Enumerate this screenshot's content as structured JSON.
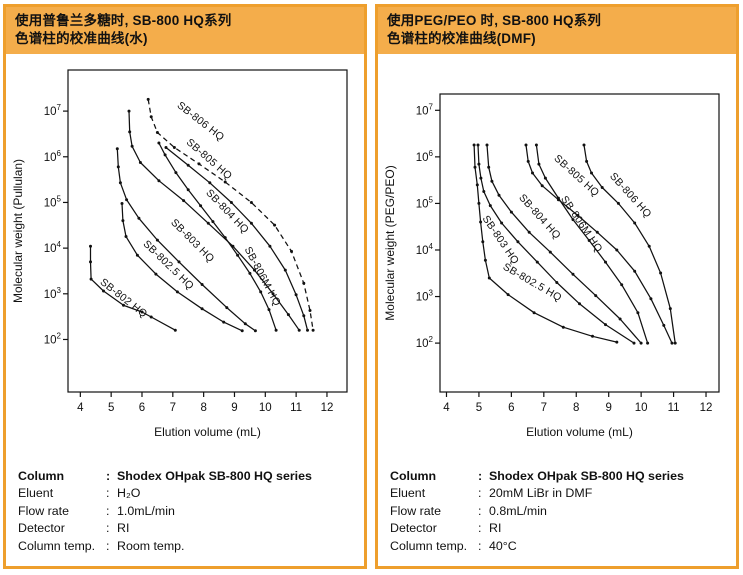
{
  "panels": [
    {
      "header": {
        "line1": "使用普鲁兰多糖时, SB-800 HQ系列",
        "line2": "色谱柱的校准曲线(水)"
      },
      "info": {
        "rows": [
          {
            "label": "Column",
            "value": "Shodex OHpak SB-800 HQ series",
            "bold": true
          },
          {
            "label": "Eluent",
            "value": "H₂O",
            "bold": false
          },
          {
            "label": "Flow rate",
            "value": "1.0mL/min",
            "bold": false
          },
          {
            "label": "Detector",
            "value": "RI",
            "bold": false
          },
          {
            "label": "Column temp.",
            "value": "Room temp.",
            "bold": false
          }
        ]
      }
    },
    {
      "header": {
        "line1": "使用PEG/PEO 时, SB-800 HQ系列",
        "line2": "色谱柱的校准曲线(DMF)"
      },
      "info": {
        "rows": [
          {
            "label": "Column",
            "value": "Shodex OHpak SB-800 HQ series",
            "bold": true
          },
          {
            "label": "Eluent",
            "value": "20mM LiBr in DMF",
            "bold": false
          },
          {
            "label": "Flow rate",
            "value": "0.8mL/min",
            "bold": false
          },
          {
            "label": "Detector",
            "value": "RI",
            "bold": false
          },
          {
            "label": "Column temp.",
            "value": "40°C",
            "bold": false
          }
        ]
      }
    }
  ],
  "chart_data": [
    {
      "type": "line",
      "title": "使用普鲁兰多糖时, SB-800 HQ系列色谱柱的校准曲线(水)",
      "xlabel": "Elution volume (mL)",
      "ylabel": "Molecular weight (Pullulan)",
      "x_ticks": [
        4,
        5,
        6,
        7,
        8,
        9,
        10,
        11,
        12
      ],
      "y_tick_exponents": [
        7,
        6,
        5,
        4,
        3,
        2
      ],
      "xlim": [
        3.6,
        12.65
      ],
      "ylim_log": [
        0.85,
        7.9
      ],
      "yscale": "log",
      "grid": false,
      "plot": {
        "x0": 62,
        "x1": 341,
        "y0": 12,
        "y1": 334
      },
      "series": [
        {
          "name": "SB-802 HQ",
          "dashed": false,
          "label": {
            "x": 4.62,
            "logy": 3.23,
            "rot": 38
          },
          "points": [
            [
              4.33,
              11000
            ],
            [
              4.33,
              5000
            ],
            [
              4.35,
              2100
            ],
            [
              4.75,
              1150
            ],
            [
              5.4,
              560
            ],
            [
              6.0,
              400
            ],
            [
              6.3,
              310
            ],
            [
              7.08,
              160
            ]
          ]
        },
        {
          "name": "SB-802.5 HQ",
          "dashed": false,
          "label": {
            "x": 6.02,
            "logy": 4.08,
            "rot": 44
          },
          "points": [
            [
              5.35,
              95000
            ],
            [
              5.38,
              40000
            ],
            [
              5.48,
              18000
            ],
            [
              5.85,
              7000
            ],
            [
              6.45,
              2700
            ],
            [
              7.15,
              1100
            ],
            [
              7.95,
              470
            ],
            [
              8.65,
              240
            ],
            [
              9.25,
              155
            ]
          ]
        },
        {
          "name": "SB-803 HQ",
          "dashed": false,
          "label": {
            "x": 6.92,
            "logy": 4.55,
            "rot": 45
          },
          "points": [
            [
              5.2,
              1500000
            ],
            [
              5.23,
              600000
            ],
            [
              5.3,
              270000
            ],
            [
              5.5,
              115000
            ],
            [
              5.9,
              45000
            ],
            [
              6.5,
              15000
            ],
            [
              7.2,
              5000
            ],
            [
              7.95,
              1600
            ],
            [
              8.75,
              500
            ],
            [
              9.35,
              220
            ],
            [
              9.68,
              155
            ]
          ]
        },
        {
          "name": "SB-804 HQ",
          "dashed": false,
          "label": {
            "x": 8.06,
            "logy": 5.2,
            "rot": 46
          },
          "points": [
            [
              5.58,
              10000000
            ],
            [
              5.6,
              3500000
            ],
            [
              5.68,
              1700000
            ],
            [
              5.95,
              750000
            ],
            [
              6.55,
              300000
            ],
            [
              7.35,
              110000
            ],
            [
              8.15,
              35000
            ],
            [
              8.95,
              11000
            ],
            [
              9.65,
              3300
            ],
            [
              10.25,
              1000
            ],
            [
              10.75,
              350
            ],
            [
              11.1,
              160
            ]
          ]
        },
        {
          "name": "SB-805 HQ",
          "dashed": false,
          "label": {
            "x": 7.42,
            "logy": 6.3,
            "rot": 41
          },
          "points": [
            [
              6.78,
              1600000
            ],
            [
              7.5,
              650000
            ],
            [
              8.2,
              270000
            ],
            [
              8.9,
              100000
            ],
            [
              9.55,
              35000
            ],
            [
              10.15,
              11000
            ],
            [
              10.65,
              3300
            ],
            [
              11.0,
              950
            ],
            [
              11.25,
              330
            ],
            [
              11.37,
              160
            ]
          ]
        },
        {
          "name": "SB-806 HQ",
          "dashed": true,
          "label": {
            "x": 7.12,
            "logy": 7.1,
            "rot": 38
          },
          "points": [
            [
              6.2,
              18000000
            ],
            [
              6.3,
              7500000
            ],
            [
              6.5,
              3400000
            ],
            [
              7.05,
              1600000
            ],
            [
              7.85,
              700000
            ],
            [
              8.7,
              280000
            ],
            [
              9.55,
              100000
            ],
            [
              10.3,
              32000
            ],
            [
              10.85,
              8500
            ],
            [
              11.25,
              1700
            ],
            [
              11.45,
              430
            ],
            [
              11.55,
              160
            ]
          ]
        },
        {
          "name": "SB-806M HQ",
          "dashed": false,
          "label": {
            "x": 9.32,
            "logy": 3.98,
            "rot": 62
          },
          "points": [
            [
              6.55,
              2000000
            ],
            [
              6.75,
              1100000
            ],
            [
              7.1,
              450000
            ],
            [
              7.5,
              190000
            ],
            [
              7.9,
              85000
            ],
            [
              8.3,
              38000
            ],
            [
              8.7,
              17000
            ],
            [
              9.1,
              7000
            ],
            [
              9.5,
              2800
            ],
            [
              9.85,
              1100
            ],
            [
              10.12,
              450
            ],
            [
              10.35,
              160
            ]
          ]
        }
      ]
    },
    {
      "type": "line",
      "title": "使用PEG/PEO 时, SB-800 HQ系列色谱柱的校准曲线(DMF)",
      "xlabel": "Elution volume (mL)",
      "ylabel": "Molecular weight (PEG/PEO)",
      "x_ticks": [
        4,
        5,
        6,
        7,
        8,
        9,
        10,
        11,
        12
      ],
      "y_tick_exponents": [
        7,
        6,
        5,
        4,
        3,
        2
      ],
      "xlim": [
        3.8,
        12.4
      ],
      "ylim_log": [
        0.95,
        7.35
      ],
      "yscale": "log",
      "grid": false,
      "plot": {
        "x0": 62,
        "x1": 341,
        "y0": 36,
        "y1": 334
      },
      "series": [
        {
          "name": "SB-802.5 HQ",
          "dashed": false,
          "label": {
            "x": 5.72,
            "logy": 3.6,
            "rot": 30
          },
          "points": [
            [
              4.85,
              1800000
            ],
            [
              4.88,
              600000
            ],
            [
              4.95,
              250000
            ],
            [
              5.0,
              100000
            ],
            [
              5.05,
              40000
            ],
            [
              5.12,
              15000
            ],
            [
              5.2,
              6000
            ],
            [
              5.32,
              2500
            ],
            [
              5.9,
              1100
            ],
            [
              6.7,
              450
            ],
            [
              7.6,
              220
            ],
            [
              8.5,
              140
            ],
            [
              9.25,
              105
            ]
          ]
        },
        {
          "name": "SB-803 HQ",
          "dashed": false,
          "label": {
            "x": 5.1,
            "logy": 4.68,
            "rot": 56
          },
          "points": [
            [
              4.97,
              1800000
            ],
            [
              5.0,
              700000
            ],
            [
              5.06,
              350000
            ],
            [
              5.15,
              180000
            ],
            [
              5.35,
              90000
            ],
            [
              5.7,
              38000
            ],
            [
              6.2,
              15000
            ],
            [
              6.8,
              5500
            ],
            [
              7.4,
              2000
            ],
            [
              8.1,
              700
            ],
            [
              8.9,
              250
            ],
            [
              9.78,
              100
            ]
          ]
        },
        {
          "name": "SB-804 HQ",
          "dashed": false,
          "label": {
            "x": 6.22,
            "logy": 5.12,
            "rot": 48
          },
          "points": [
            [
              5.25,
              1800000
            ],
            [
              5.3,
              600000
            ],
            [
              5.4,
              300000
            ],
            [
              5.62,
              150000
            ],
            [
              6.0,
              65000
            ],
            [
              6.55,
              24000
            ],
            [
              7.2,
              9000
            ],
            [
              7.9,
              3000
            ],
            [
              8.6,
              1050
            ],
            [
              9.35,
              330
            ],
            [
              10.0,
              100
            ]
          ]
        },
        {
          "name": "SB-805 HQ",
          "dashed": false,
          "label": {
            "x": 7.3,
            "logy": 5.95,
            "rot": 42
          },
          "points": [
            [
              6.45,
              1800000
            ],
            [
              6.52,
              800000
            ],
            [
              6.65,
              450000
            ],
            [
              6.95,
              240000
            ],
            [
              7.45,
              120000
            ],
            [
              8.05,
              55000
            ],
            [
              8.65,
              24000
            ],
            [
              9.25,
              10000
            ],
            [
              9.8,
              3500
            ],
            [
              10.3,
              900
            ],
            [
              10.7,
              240
            ],
            [
              10.95,
              100
            ]
          ]
        },
        {
          "name": "SB-806M HQ",
          "dashed": false,
          "label": {
            "x": 7.52,
            "logy": 5.1,
            "rot": 56
          },
          "points": [
            [
              6.77,
              1800000
            ],
            [
              6.85,
              700000
            ],
            [
              7.05,
              350000
            ],
            [
              7.45,
              130000
            ],
            [
              7.9,
              45000
            ],
            [
              8.4,
              16000
            ],
            [
              8.9,
              5500
            ],
            [
              9.4,
              1800
            ],
            [
              9.9,
              450
            ],
            [
              10.2,
              100
            ]
          ]
        },
        {
          "name": "SB-806 HQ",
          "dashed": false,
          "label": {
            "x": 9.02,
            "logy": 5.58,
            "rot": 48
          },
          "points": [
            [
              8.24,
              1800000
            ],
            [
              8.32,
              800000
            ],
            [
              8.47,
              450000
            ],
            [
              8.8,
              220000
            ],
            [
              9.3,
              100000
            ],
            [
              9.8,
              38000
            ],
            [
              10.25,
              12000
            ],
            [
              10.6,
              3200
            ],
            [
              10.9,
              550
            ],
            [
              11.05,
              100
            ]
          ]
        }
      ]
    }
  ]
}
